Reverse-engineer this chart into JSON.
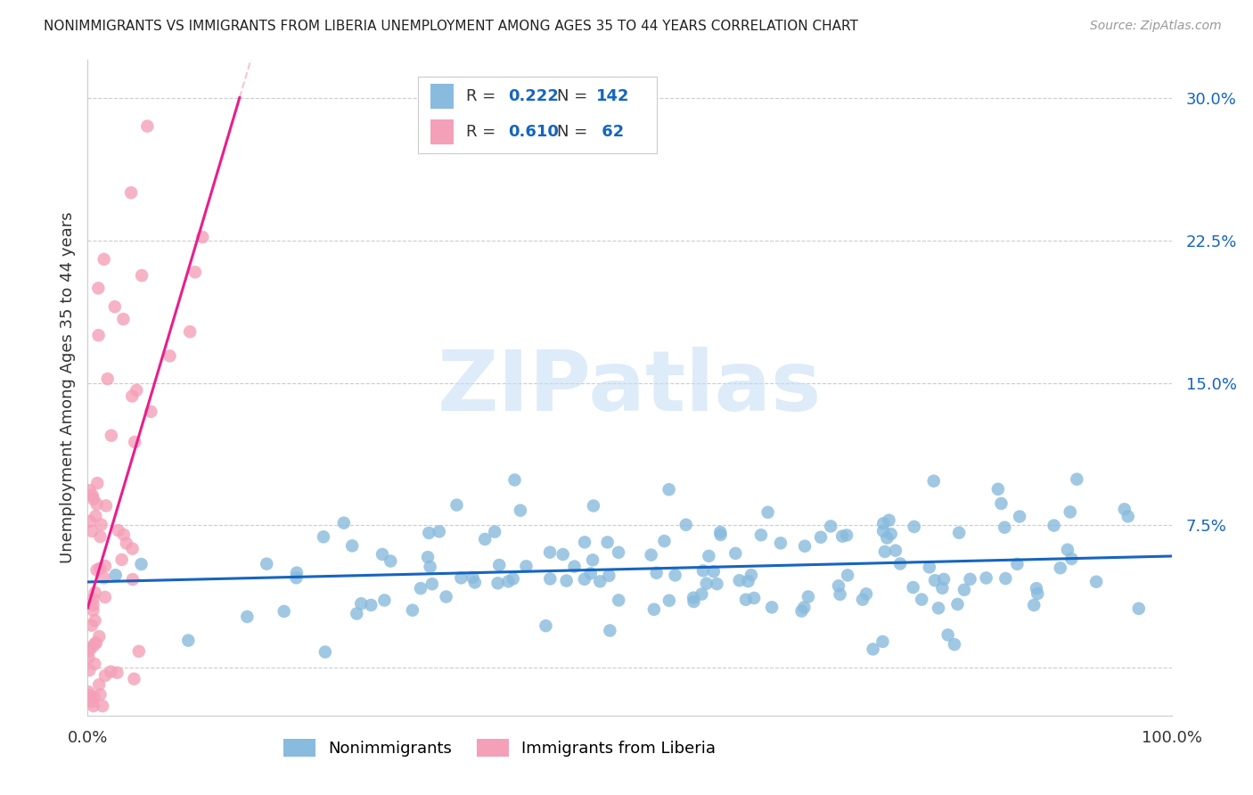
{
  "title": "NONIMMIGRANTS VS IMMIGRANTS FROM LIBERIA UNEMPLOYMENT AMONG AGES 35 TO 44 YEARS CORRELATION CHART",
  "source": "Source: ZipAtlas.com",
  "ylabel": "Unemployment Among Ages 35 to 44 years",
  "xlim": [
    0.0,
    1.0
  ],
  "ylim": [
    -0.025,
    0.32
  ],
  "ytick_vals": [
    0.0,
    0.075,
    0.15,
    0.225,
    0.3
  ],
  "ytick_labels": [
    "",
    "7.5%",
    "15.0%",
    "22.5%",
    "30.0%"
  ],
  "xtick_vals": [
    0.0,
    1.0
  ],
  "xtick_labels": [
    "0.0%",
    "100.0%"
  ],
  "blue_scatter_color": "#88bbdd",
  "pink_scatter_color": "#f4a0b8",
  "blue_line_color": "#1565C0",
  "pink_line_color": "#E91E8C",
  "pink_dash_color": "#f4a0b8",
  "axis_label_color": "#1565C0",
  "text_color": "#333333",
  "grid_color": "#cccccc",
  "background_color": "#ffffff",
  "legend_R_color": "#333333",
  "legend_N_color": "#333333",
  "legend_val_color": "#1565C0",
  "legend_R_blue": "0.222",
  "legend_N_blue": "142",
  "legend_R_pink": "0.610",
  "legend_N_pink": "62",
  "watermark_text": "ZIPatlas",
  "watermark_color": "#c8dff5",
  "bottom_legend_labels": [
    "Nonimmigrants",
    "Immigrants from Liberia"
  ],
  "blue_n": 142,
  "pink_n": 62,
  "blue_seed": 101,
  "pink_seed": 202
}
